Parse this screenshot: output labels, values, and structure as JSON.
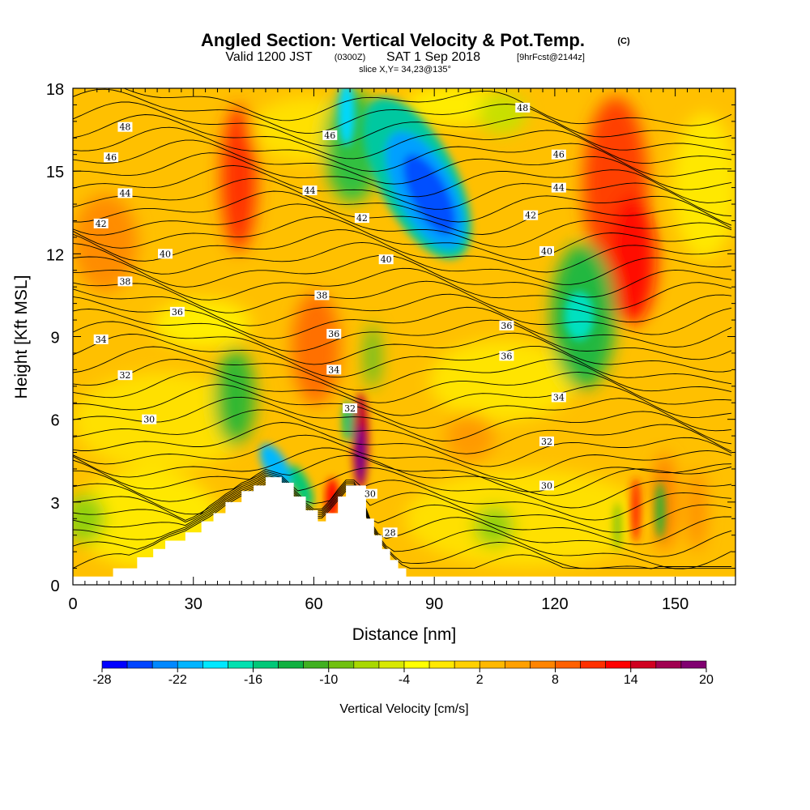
{
  "title": {
    "main": "Angled Section: Vertical Velocity & Pot.Temp.",
    "copyright": "(C)",
    "valid_prefix": "Valid 1200 JST",
    "valid_utc": "(0300Z)",
    "valid_date": "SAT 1 Sep 2018",
    "forecast": "[9hrFcst@2144z]",
    "slice": "slice X,Y= 34,23@135°"
  },
  "chart_data": {
    "type": "heatmap",
    "xlabel": "Distance [nm]",
    "ylabel": "Height [Kft MSL]",
    "xlim": [
      0,
      165
    ],
    "ylim": [
      0,
      18
    ],
    "x_ticks": [
      0,
      30,
      60,
      90,
      120,
      150
    ],
    "y_ticks": [
      0,
      3,
      6,
      9,
      12,
      15,
      18
    ],
    "colorbar": {
      "label": "Vertical Velocity [cm/s]",
      "tick_labels": [
        "-28",
        "-22",
        "-16",
        "-10",
        "-4",
        "2",
        "8",
        "14",
        "20"
      ],
      "levels": [
        -28,
        -26,
        -24,
        -22,
        -20,
        -18,
        -16,
        -14,
        -12,
        -10,
        -8,
        -6,
        -4,
        -2,
        0,
        2,
        4,
        6,
        8,
        10,
        12,
        14,
        16,
        18,
        20
      ],
      "colors": [
        "#0000ff",
        "#0044ff",
        "#0088ff",
        "#00b4ff",
        "#00e8ff",
        "#00e0b0",
        "#00c878",
        "#10b040",
        "#40b020",
        "#70c010",
        "#a8d800",
        "#d8e800",
        "#ffff00",
        "#ffe800",
        "#ffd000",
        "#ffb800",
        "#ffa000",
        "#ff8400",
        "#ff6000",
        "#ff3000",
        "#ff0000",
        "#d00020",
        "#a00050",
        "#800070"
      ]
    },
    "theta_contours": {
      "units": "K",
      "labeled": [
        {
          "value": "48",
          "x": 13,
          "y": 16.6
        },
        {
          "value": "46",
          "x": 9.5,
          "y": 15.5
        },
        {
          "value": "44",
          "x": 13,
          "y": 14.2
        },
        {
          "value": "42",
          "x": 7,
          "y": 13.1
        },
        {
          "value": "40",
          "x": 23,
          "y": 12.0
        },
        {
          "value": "38",
          "x": 13,
          "y": 11.0
        },
        {
          "value": "36",
          "x": 26,
          "y": 9.9
        },
        {
          "value": "34",
          "x": 7,
          "y": 8.9
        },
        {
          "value": "32",
          "x": 13,
          "y": 7.6
        },
        {
          "value": "30",
          "x": 19,
          "y": 6.0
        },
        {
          "value": "46",
          "x": 64,
          "y": 16.3
        },
        {
          "value": "44",
          "x": 59,
          "y": 14.3
        },
        {
          "value": "42",
          "x": 72,
          "y": 13.3
        },
        {
          "value": "40",
          "x": 78,
          "y": 11.8
        },
        {
          "value": "38",
          "x": 62,
          "y": 10.5
        },
        {
          "value": "36",
          "x": 65,
          "y": 9.1
        },
        {
          "value": "34",
          "x": 65,
          "y": 7.8
        },
        {
          "value": "32",
          "x": 69,
          "y": 6.4
        },
        {
          "value": "30",
          "x": 74,
          "y": 3.3
        },
        {
          "value": "28",
          "x": 79,
          "y": 1.9
        },
        {
          "value": "48",
          "x": 112,
          "y": 17.3
        },
        {
          "value": "46",
          "x": 121,
          "y": 15.6
        },
        {
          "value": "44",
          "x": 121,
          "y": 14.4
        },
        {
          "value": "42",
          "x": 114,
          "y": 13.4
        },
        {
          "value": "40",
          "x": 118,
          "y": 12.1
        },
        {
          "value": "36",
          "x": 108,
          "y": 9.4
        },
        {
          "value": "36",
          "x": 108,
          "y": 8.3
        },
        {
          "value": "34",
          "x": 121,
          "y": 6.8
        },
        {
          "value": "32",
          "x": 118,
          "y": 5.2
        },
        {
          "value": "30",
          "x": 118,
          "y": 3.6
        }
      ]
    },
    "terrain_kft": [
      {
        "x": 0,
        "h": 0.3
      },
      {
        "x": 10,
        "h": 0.6
      },
      {
        "x": 16,
        "h": 1.0
      },
      {
        "x": 20,
        "h": 1.3
      },
      {
        "x": 23,
        "h": 1.6
      },
      {
        "x": 28,
        "h": 1.9
      },
      {
        "x": 32,
        "h": 2.3
      },
      {
        "x": 35,
        "h": 2.6
      },
      {
        "x": 38,
        "h": 3.0
      },
      {
        "x": 42,
        "h": 3.4
      },
      {
        "x": 45,
        "h": 3.6
      },
      {
        "x": 48,
        "h": 3.9
      },
      {
        "x": 52,
        "h": 3.7
      },
      {
        "x": 55,
        "h": 3.2
      },
      {
        "x": 58,
        "h": 2.7
      },
      {
        "x": 61,
        "h": 2.3
      },
      {
        "x": 63,
        "h": 2.6
      },
      {
        "x": 66,
        "h": 3.2
      },
      {
        "x": 68,
        "h": 3.6
      },
      {
        "x": 71,
        "h": 3.6
      },
      {
        "x": 73,
        "h": 2.4
      },
      {
        "x": 75,
        "h": 1.8
      },
      {
        "x": 77,
        "h": 1.3
      },
      {
        "x": 79,
        "h": 0.9
      },
      {
        "x": 81,
        "h": 0.6
      },
      {
        "x": 83,
        "h": 0.3
      },
      {
        "x": 165,
        "h": 0.3
      }
    ]
  }
}
